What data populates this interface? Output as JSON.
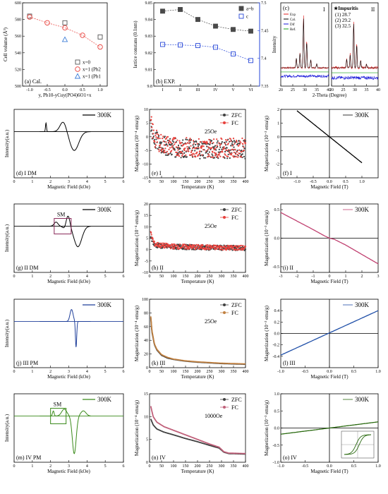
{
  "chart_data": [
    {
      "id": "a",
      "type": "scatter",
      "panel_label": "(a) Cal.",
      "xlabel": "y, Pb10-yCuy(PO4)6O1+x",
      "ylabel": "Cell volume (Å³)",
      "xlim": [
        -1.2,
        1.2
      ],
      "ylim": [
        500,
        600
      ],
      "xticks": [
        -1.0,
        -0.5,
        0.0,
        0.5,
        1.0
      ],
      "xtick_labels": [
        "-1.0",
        "-0.5",
        "0.0",
        "0.5",
        "1.0"
      ],
      "yticks": [
        500,
        520,
        540,
        560,
        580,
        600
      ],
      "legend": "bottom-right",
      "series": [
        {
          "name": "x=0",
          "marker": "square",
          "color": "#555555",
          "x": [
            -1.0,
            0.0,
            1.0
          ],
          "y": [
            584,
            576,
            559
          ]
        },
        {
          "name": "x=1 (Pb2",
          "marker": "circle",
          "color": "#e8413c",
          "line": true,
          "x": [
            -1.0,
            -0.5,
            0.0,
            0.5,
            1.0
          ],
          "y": [
            583,
            576,
            570,
            561,
            547
          ]
        },
        {
          "name": "x=1 (Pb1",
          "marker": "triangle",
          "color": "#3f7fd8",
          "x": [
            0.0
          ],
          "y": [
            556
          ]
        }
      ]
    },
    {
      "id": "b",
      "type": "scatter",
      "panel_label": "(b) EXP.",
      "xlabel": "",
      "ylabel": "lattice constans (0.1nm)",
      "categories": [
        "I",
        "II",
        "III",
        "IV",
        "V",
        "VI"
      ],
      "ylim": [
        9.8,
        9.85
      ],
      "yticks": [
        9.8,
        9.81,
        9.82,
        9.83,
        9.84,
        9.85
      ],
      "y2lim": [
        7.35,
        7.5
      ],
      "y2ticks": [
        7.35,
        7.4,
        7.45,
        7.5
      ],
      "legend": "top-right",
      "series": [
        {
          "name": "a=b",
          "marker": "filled-square",
          "color": "#4a4a4a",
          "axis": "left",
          "y": [
            9.845,
            9.846,
            9.84,
            9.836,
            9.834,
            9.833
          ]
        },
        {
          "name": "c",
          "marker": "square",
          "color": "#2747d8",
          "axis": "right",
          "y": [
            7.425,
            7.424,
            7.423,
            7.42,
            7.408,
            7.396
          ]
        }
      ]
    },
    {
      "id": "c",
      "type": "line",
      "panel_label": "(c)",
      "xlabel": "2-Theta (Degree)",
      "ylabel": "Intensity",
      "sub_labels": [
        "I",
        "II"
      ],
      "xticks_left": [
        20,
        25,
        30,
        35,
        40
      ],
      "xticks_right": [
        20,
        25,
        30,
        35,
        40
      ],
      "legend_left": [
        "Exp",
        "Cal.",
        "Dif",
        "Ref."
      ],
      "legend_colors": [
        "#e02020",
        "#000000",
        "#1515d8",
        "#18a018"
      ],
      "impurities_title": "★Impuritis",
      "impurities": [
        "(1) 28.7",
        "(2) 29.2",
        "(3) 32.5"
      ]
    },
    {
      "id": "d",
      "type": "line",
      "panel_label": "(d) I DM",
      "xlabel": "Magnetic Field (kOe)",
      "ylabel": "Intensity(a.u.)",
      "legend": "300K",
      "xlim": [
        0,
        6
      ],
      "xticks": [
        0,
        1,
        2,
        3,
        4,
        5,
        6
      ],
      "color": "#000000"
    },
    {
      "id": "e",
      "type": "scatter",
      "panel_label": "(e) I",
      "xlabel": "Temperature (K)",
      "ylabel": "Magnetization (10⁻⁴ emu/g)",
      "annotation": "25Oe",
      "xlim": [
        0,
        400
      ],
      "ylim": [
        -15,
        10
      ],
      "xticks": [
        0,
        50,
        100,
        150,
        200,
        250,
        300,
        350,
        400
      ],
      "yticks": [
        -15,
        -10,
        -5,
        0,
        5,
        10
      ],
      "legend": "top-right",
      "series": [
        {
          "name": "ZFC",
          "color": "#404040",
          "x": [
            5,
            20,
            50,
            100,
            200,
            300,
            400
          ],
          "y": [
            4,
            -1,
            -3,
            -4,
            -4.5,
            -4.5,
            -4.5
          ]
        },
        {
          "name": "FC",
          "color": "#e8413c",
          "x": [
            5,
            20,
            50,
            100,
            200,
            300,
            400
          ],
          "y": [
            5,
            -0.5,
            -2.5,
            -3.5,
            -4,
            -4,
            -4
          ]
        }
      ]
    },
    {
      "id": "f",
      "type": "line",
      "panel_label": "(f) I",
      "xlabel": "Magnetic Field (T)",
      "ylabel": "Magnetization (10⁻³ emu/g)",
      "legend": "300K",
      "xlim": [
        -1.5,
        1.5
      ],
      "ylim": [
        -3,
        2
      ],
      "xticks": [
        -1.0,
        -0.5,
        0.0,
        0.5,
        1.0
      ],
      "xtick_labels": [
        "-1.0",
        "-0.5",
        "0.0",
        "0.5",
        "1.0"
      ],
      "yticks": [
        -3,
        -2,
        -1,
        0,
        1,
        2
      ],
      "series": [
        {
          "name": "300K",
          "color": "#000000",
          "x": [
            -1.0,
            1.0
          ],
          "y": [
            1.9,
            -1.9
          ]
        }
      ]
    },
    {
      "id": "g",
      "type": "line",
      "panel_label": "(g) II DM",
      "xlabel": "Magnetic Field (kOe)",
      "ylabel": "Intensity(a.u.)",
      "legend": "300K",
      "annotation": "SM",
      "xlim": [
        0,
        6
      ],
      "xticks": [
        0,
        1,
        2,
        3,
        4,
        5,
        6
      ],
      "color": "#000000"
    },
    {
      "id": "h",
      "type": "scatter",
      "panel_label": "(h) II",
      "xlabel": "Temperature (K)",
      "ylabel": "Magnetization (10⁻⁴ emu/g)",
      "annotation": "25Oe",
      "xlim": [
        0,
        400
      ],
      "ylim": [
        -10,
        20
      ],
      "xticks": [
        0,
        50,
        100,
        150,
        200,
        250,
        300,
        350,
        400
      ],
      "yticks": [
        -10,
        -5,
        0,
        5,
        10,
        15,
        20
      ],
      "legend": "top-right",
      "series": [
        {
          "name": "ZFC",
          "color": "#404040",
          "x": [
            5,
            20,
            50,
            100,
            200,
            300,
            400
          ],
          "y": [
            6,
            2,
            1.5,
            1.2,
            1,
            0.8,
            0.6
          ]
        },
        {
          "name": "FC",
          "color": "#e8413c",
          "x": [
            5,
            20,
            50,
            100,
            200,
            300,
            400
          ],
          "y": [
            7,
            2.5,
            1.8,
            1.4,
            1.1,
            0.9,
            0.7
          ]
        }
      ]
    },
    {
      "id": "i",
      "type": "line",
      "panel_label": "(i) II",
      "xlabel": "Magnetic Field (T)",
      "ylabel": "Magnetization (10⁻³ emu/g)",
      "legend": "300K",
      "xlim": [
        -3,
        3
      ],
      "ylim": [
        -0.6,
        0.6
      ],
      "xticks": [
        -3,
        -2,
        -1,
        0,
        1,
        2,
        3
      ],
      "yticks": [
        -0.5,
        0.0,
        0.5
      ],
      "ytick_labels": [
        "-0.5",
        "0.0",
        "0.5"
      ],
      "series": [
        {
          "name": "300K",
          "color": "#c04070",
          "x": [
            -3,
            -1,
            -0.3,
            0,
            0.3,
            1,
            3
          ],
          "y": [
            0.45,
            0.15,
            0.04,
            0.0,
            -0.02,
            -0.12,
            -0.45
          ]
        }
      ]
    },
    {
      "id": "j",
      "type": "line",
      "panel_label": "(j) III PM",
      "xlabel": "Magnetic Field (kOe)",
      "ylabel": "Intensity(a.u.)",
      "legend": "300K",
      "xlim": [
        0,
        6
      ],
      "xticks": [
        0,
        1,
        2,
        3,
        4,
        5,
        6
      ],
      "color": "#1f3f9a"
    },
    {
      "id": "k",
      "type": "line",
      "panel_label": "(k) III",
      "xlabel": "Temperature (K)",
      "ylabel": "Magnetization (10⁻⁴ emu/g)",
      "annotation": "25Oe",
      "xlim": [
        0,
        400
      ],
      "ylim": [
        0,
        100
      ],
      "xticks": [
        0,
        50,
        100,
        150,
        200,
        250,
        300,
        350,
        400
      ],
      "yticks": [
        0,
        20,
        40,
        60,
        80,
        100
      ],
      "legend": "top-right",
      "series": [
        {
          "name": "ZFC",
          "color": "#404040",
          "x": [
            5,
            10,
            20,
            30,
            50,
            75,
            100,
            150,
            200,
            250,
            300,
            350,
            400
          ],
          "y": [
            73,
            52,
            34,
            26,
            18,
            14,
            12,
            9.5,
            8,
            7,
            6,
            5.5,
            5
          ]
        },
        {
          "name": "FC",
          "color": "#c08040",
          "x": [
            5,
            10,
            20,
            30,
            50,
            75,
            100,
            150,
            200,
            250,
            300,
            350,
            400
          ],
          "y": [
            75,
            54,
            35,
            27,
            19,
            15,
            12.5,
            10,
            8.5,
            7.5,
            6.5,
            6,
            5.5
          ]
        }
      ]
    },
    {
      "id": "l",
      "type": "line",
      "panel_label": "(l) III",
      "xlabel": "Magnetic Field (T)",
      "ylabel": "Magnetization (10⁻³ emu/g)",
      "legend": "300K",
      "xlim": [
        -1,
        1
      ],
      "ylim": [
        -0.6,
        0.6
      ],
      "xticks": [
        -1.0,
        -0.5,
        0.0,
        0.5,
        1.0
      ],
      "xtick_labels": [
        "-1.0",
        "-0.5",
        "0.0",
        "0.5",
        "1.0"
      ],
      "yticks": [
        -0.4,
        -0.2,
        0.0,
        0.2,
        0.4
      ],
      "ytick_labels": [
        "-0.4",
        "-0.2",
        "0.0",
        "0.2",
        "0.4"
      ],
      "series": [
        {
          "name": "300K",
          "color": "#1f4fa8",
          "x": [
            -1,
            1
          ],
          "y": [
            -0.38,
            0.4
          ]
        }
      ]
    },
    {
      "id": "m",
      "type": "line",
      "panel_label": "(m) IV PM",
      "xlabel": "Magnetic Field (kOe)",
      "ylabel": "Intensity(a.u.)",
      "legend": "300K",
      "annotation": "SM",
      "xlim": [
        0,
        6
      ],
      "xticks": [
        0,
        1,
        2,
        3,
        4,
        5,
        6
      ],
      "color": "#3a8a1a"
    },
    {
      "id": "n",
      "type": "line",
      "panel_label": "(n) IV",
      "xlabel": "Temperature (K)",
      "ylabel": "Magnetization (10⁻⁴ emu/g)",
      "annotation": "1000Oe",
      "xlim": [
        0,
        400
      ],
      "ylim": [
        0,
        15
      ],
      "xticks": [
        0,
        50,
        100,
        150,
        200,
        250,
        300,
        350,
        400
      ],
      "yticks": [
        0,
        5,
        10,
        15
      ],
      "legend": "top-right",
      "series": [
        {
          "name": "ZFC",
          "color": "#404040",
          "x": [
            5,
            15,
            30,
            60,
            100,
            150,
            200,
            250,
            290,
            310,
            330,
            400
          ],
          "y": [
            9.5,
            8.2,
            7.3,
            6.6,
            6.0,
            5.2,
            4.5,
            3.7,
            3.1,
            2.2,
            1.9,
            1.8
          ]
        },
        {
          "name": "FC",
          "color": "#c0607a",
          "x": [
            5,
            15,
            30,
            60,
            100,
            150,
            200,
            250,
            290,
            310,
            330,
            400
          ],
          "y": [
            12.3,
            10.0,
            8.8,
            7.8,
            7.0,
            6.0,
            5.0,
            4.0,
            3.3,
            2.3,
            2.0,
            1.9
          ]
        }
      ]
    },
    {
      "id": "o",
      "type": "line",
      "panel_label": "(o) IV",
      "xlabel": "Magnetic Field (T)",
      "ylabel": "Magnetization (10⁻³ emu/g)",
      "legend": "300K",
      "xlim": [
        -1,
        1
      ],
      "ylim": [
        -1.0,
        1.0
      ],
      "xticks": [
        -1.0,
        -0.5,
        0.0,
        0.5,
        1.0
      ],
      "xtick_labels": [
        "-1.0",
        "-0.5",
        "0.0",
        "0.5",
        "1.0"
      ],
      "yticks": [
        -1.0,
        -0.5,
        0.0,
        0.5,
        1.0
      ],
      "ytick_labels": [
        "-1.0",
        "-0.5",
        "0.0",
        "0.5",
        "1.0"
      ],
      "series": [
        {
          "name": "300K",
          "color": "#2a6a10",
          "x": [
            -1,
            -0.5,
            0,
            0.5,
            1
          ],
          "y": [
            -0.18,
            -0.09,
            0.0,
            0.09,
            0.18
          ]
        }
      ]
    }
  ]
}
